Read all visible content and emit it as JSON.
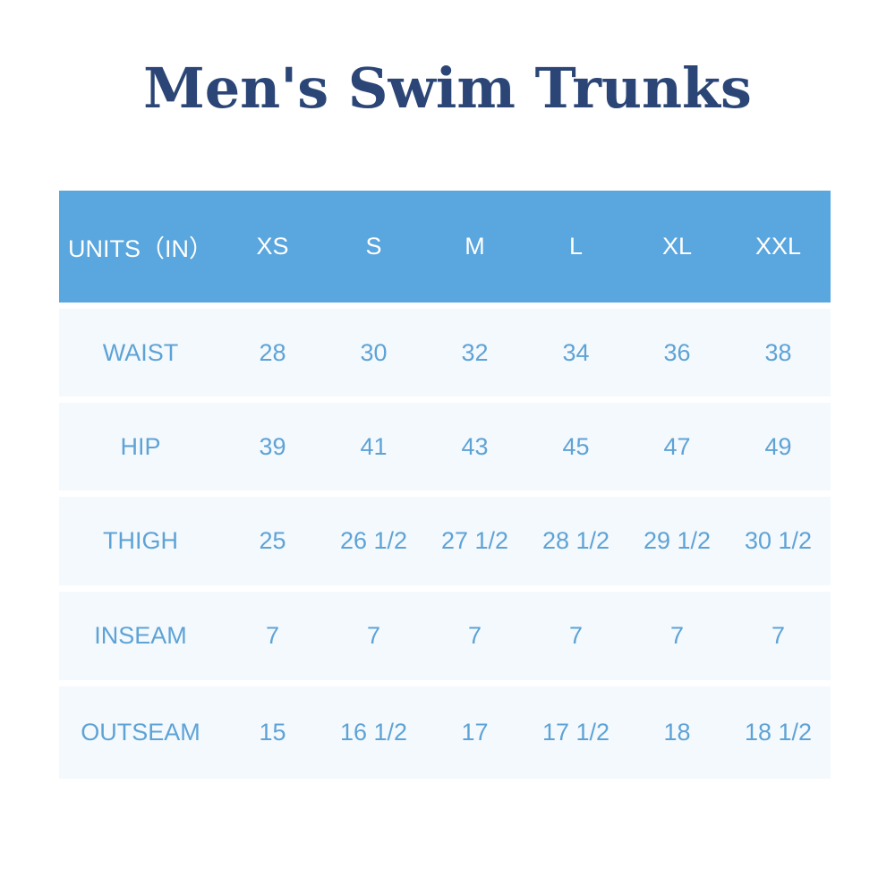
{
  "title": "Men's Swim Trunks",
  "table": {
    "header": [
      "UNITS（IN）",
      "XS",
      "S",
      "M",
      "L",
      "XL",
      "XXL"
    ],
    "rows": [
      [
        "WAIST",
        "28",
        "30",
        "32",
        "34",
        "36",
        "38"
      ],
      [
        "HIP",
        "39",
        "41",
        "43",
        "45",
        "47",
        "49"
      ],
      [
        "THIGH",
        "25",
        "26 1/2",
        "27 1/2",
        "28 1/2",
        "29 1/2",
        "30 1/2"
      ],
      [
        "INSEAM",
        "7",
        "7",
        "7",
        "7",
        "7",
        "7"
      ],
      [
        "OUTSEAM",
        "15",
        "16 1/2",
        "17",
        "17 1/2",
        "18",
        "18 1/2"
      ]
    ]
  },
  "colors": {
    "title": "#2b4676",
    "header_bg": "#5aa6de",
    "row_bg": "#f4f9fd",
    "cell_text": "#5ea3d6"
  }
}
